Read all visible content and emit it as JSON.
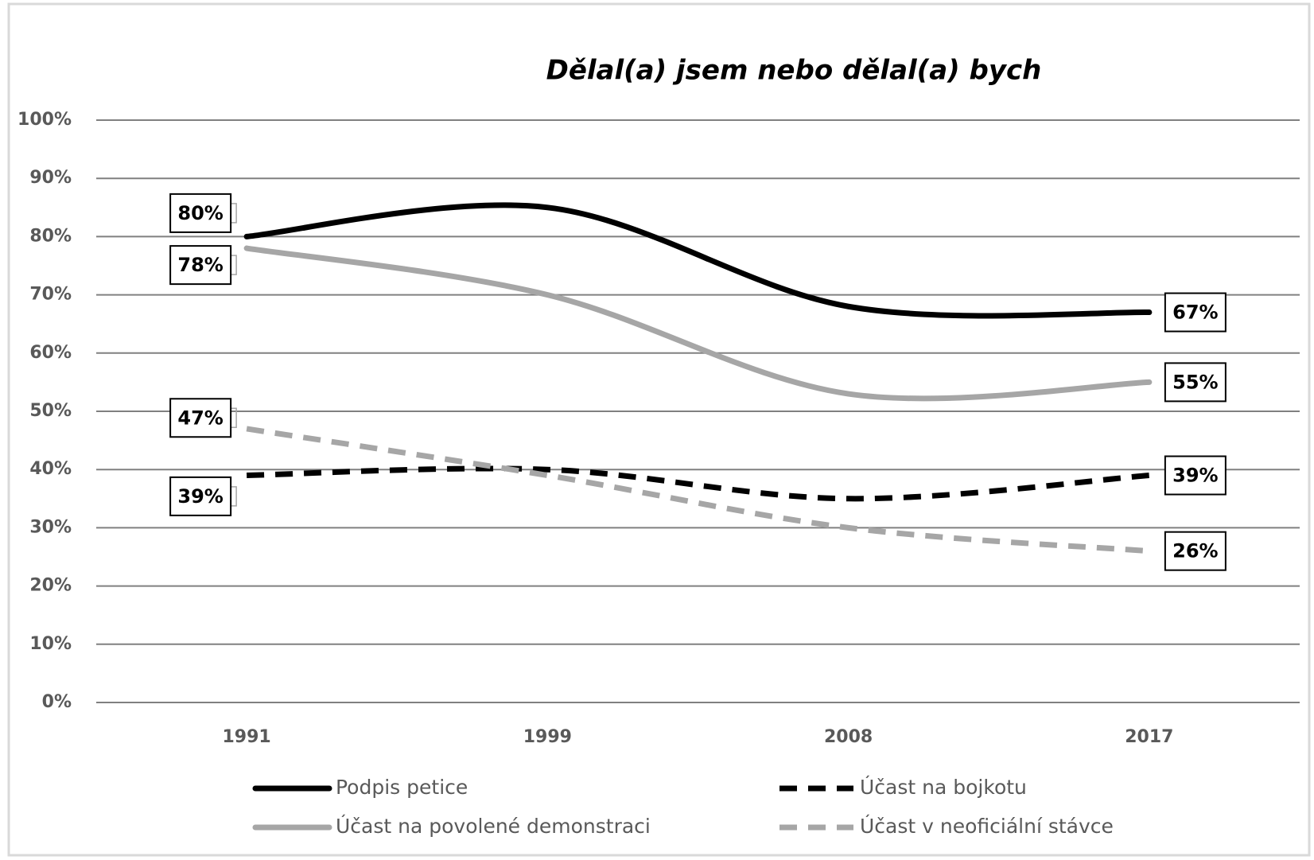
{
  "chart_data": {
    "type": "line",
    "title": "Dělal(a) jsem nebo dělal(a) bych",
    "categories": [
      "1991",
      "1999",
      "2008",
      "2017"
    ],
    "ylim": [
      0,
      100
    ],
    "yticks": [
      {
        "value": 0,
        "label": "0%"
      },
      {
        "value": 10,
        "label": "10%"
      },
      {
        "value": 20,
        "label": "20%"
      },
      {
        "value": 30,
        "label": "30%"
      },
      {
        "value": 40,
        "label": "40%"
      },
      {
        "value": 50,
        "label": "50%"
      },
      {
        "value": 60,
        "label": "60%"
      },
      {
        "value": 70,
        "label": "70%"
      },
      {
        "value": 80,
        "label": "80%"
      },
      {
        "value": 90,
        "label": "90%"
      },
      {
        "value": 100,
        "label": "100%"
      }
    ],
    "grid": true,
    "series": [
      {
        "name": "Podpis petice",
        "color": "#000000",
        "line_style": "solid",
        "values": [
          80,
          85,
          68,
          67
        ],
        "value_labels": [
          "80%",
          null,
          null,
          "67%"
        ]
      },
      {
        "name": "Účast na bojkotu",
        "color": "#000000",
        "line_style": "dashed",
        "values": [
          39,
          40,
          35,
          39
        ],
        "value_labels": [
          "39%",
          null,
          null,
          "39%"
        ]
      },
      {
        "name": "Účast na povolené demonstraci",
        "color": "#a6a6a6",
        "line_style": "solid",
        "values": [
          78,
          70,
          53,
          55
        ],
        "value_labels": [
          "78%",
          null,
          null,
          "55%"
        ]
      },
      {
        "name": "Účast v neoficiální stávce",
        "color": "#a6a6a6",
        "line_style": "dashed",
        "values": [
          47,
          39,
          30,
          26
        ],
        "value_labels": [
          "47%",
          null,
          null,
          "26%"
        ]
      }
    ]
  }
}
